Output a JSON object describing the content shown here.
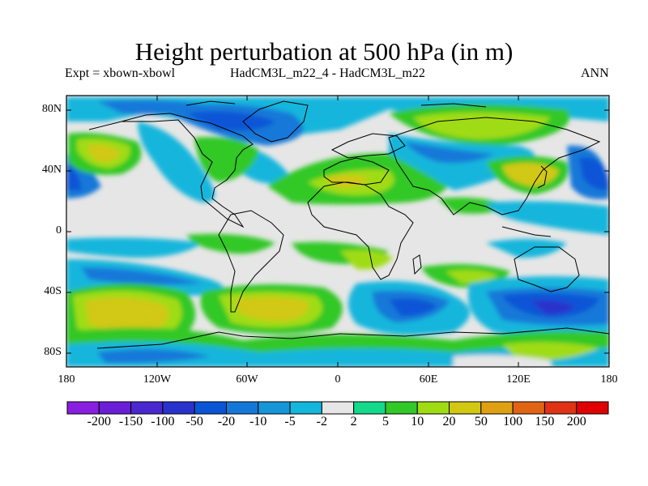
{
  "title": "Height perturbation at 500 hPa (in m)",
  "experiment_label": "Expt = xbown-xbowl",
  "comparison_label": "HadCM3L_m22_4 - HadCM3L_m22",
  "season_label": "ANN",
  "lat_ticks": [
    "80N",
    "40N",
    "0",
    "40S",
    "80S"
  ],
  "lon_ticks": [
    "180",
    "120W",
    "60W",
    "0",
    "60E",
    "120E",
    "180"
  ],
  "colorbar": {
    "labels": [
      "-200",
      "-150",
      "-100",
      "-50",
      "-20",
      "-10",
      "-5",
      "-2",
      "2",
      "5",
      "10",
      "20",
      "50",
      "100",
      "150",
      "200"
    ],
    "colors": [
      "#8a1ee0",
      "#6a1ed8",
      "#4a28d0",
      "#2a32cc",
      "#0a55d6",
      "#1478d8",
      "#1496d8",
      "#14b6dc",
      "#e6e6e6",
      "#14d88a",
      "#32c828",
      "#a0dc14",
      "#d2c814",
      "#e0a014",
      "#e06414",
      "#e03214",
      "#e00000"
    ]
  }
}
